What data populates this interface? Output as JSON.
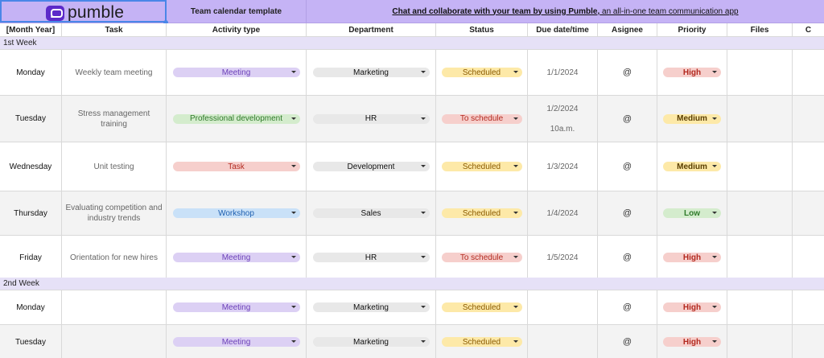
{
  "header_bar": {
    "logo_text": "pumble",
    "template_title": "Team calendar template",
    "promo_link": "Chat and collaborate with your team by using Pumble,",
    "promo_rest": " an all-in-one team communication app"
  },
  "columns": [
    "[Month Year]",
    "Task",
    "Activity type",
    "Department",
    "Status",
    "Due date/time",
    "Asignee",
    "Priority",
    "Files",
    "C"
  ],
  "colors": {
    "header_purple": "#c5b3f5",
    "week_band": "#e6e1f7",
    "meeting_chip": "#dcd0f4",
    "prodev_chip": "#d4eccd",
    "task_chip": "#f6cfcc",
    "workshop_chip": "#c9e1f8",
    "scheduled_chip": "#fde9a8",
    "toschedule_chip": "#f6cfcc",
    "high_chip": "#f6cfcc",
    "medium_chip": "#fde9a8",
    "low_chip": "#d4eccd"
  },
  "weeks": [
    {
      "label": "1st Week",
      "rows": [
        {
          "day": "Monday",
          "task": "Weekly team meeting",
          "activity": "Meeting",
          "department": "Marketing",
          "status": "Scheduled",
          "due": "1/1/2024",
          "due2": "",
          "assignee": "@",
          "priority": "High"
        },
        {
          "day": "Tuesday",
          "task": "Stress management training",
          "activity": "Professional development",
          "department": "HR",
          "status": "To schedule",
          "due": "1/2/2024",
          "due2": "10a.m.",
          "assignee": "@",
          "priority": "Medium"
        },
        {
          "day": "Wednesday",
          "task": "Unit testing",
          "activity": "Task",
          "department": "Development",
          "status": "Scheduled",
          "due": "1/3/2024",
          "due2": "",
          "assignee": "@",
          "priority": "Medium"
        },
        {
          "day": "Thursday",
          "task": "Evaluating competition and industry trends",
          "activity": "Workshop",
          "department": "Sales",
          "status": "Scheduled",
          "due": "1/4/2024",
          "due2": "",
          "assignee": "@",
          "priority": "Low"
        },
        {
          "day": "Friday",
          "task": "Orientation for new hires",
          "activity": "Meeting",
          "department": "HR",
          "status": "To schedule",
          "due": "1/5/2024",
          "due2": "",
          "assignee": "@",
          "priority": "High"
        }
      ]
    },
    {
      "label": "2nd Week",
      "rows": [
        {
          "day": "Monday",
          "task": "",
          "activity": "Meeting",
          "department": "Marketing",
          "status": "Scheduled",
          "due": "",
          "due2": "",
          "assignee": "@",
          "priority": "High"
        },
        {
          "day": "Tuesday",
          "task": "",
          "activity": "Meeting",
          "department": "Marketing",
          "status": "Scheduled",
          "due": "",
          "due2": "",
          "assignee": "@",
          "priority": "High"
        }
      ]
    }
  ]
}
